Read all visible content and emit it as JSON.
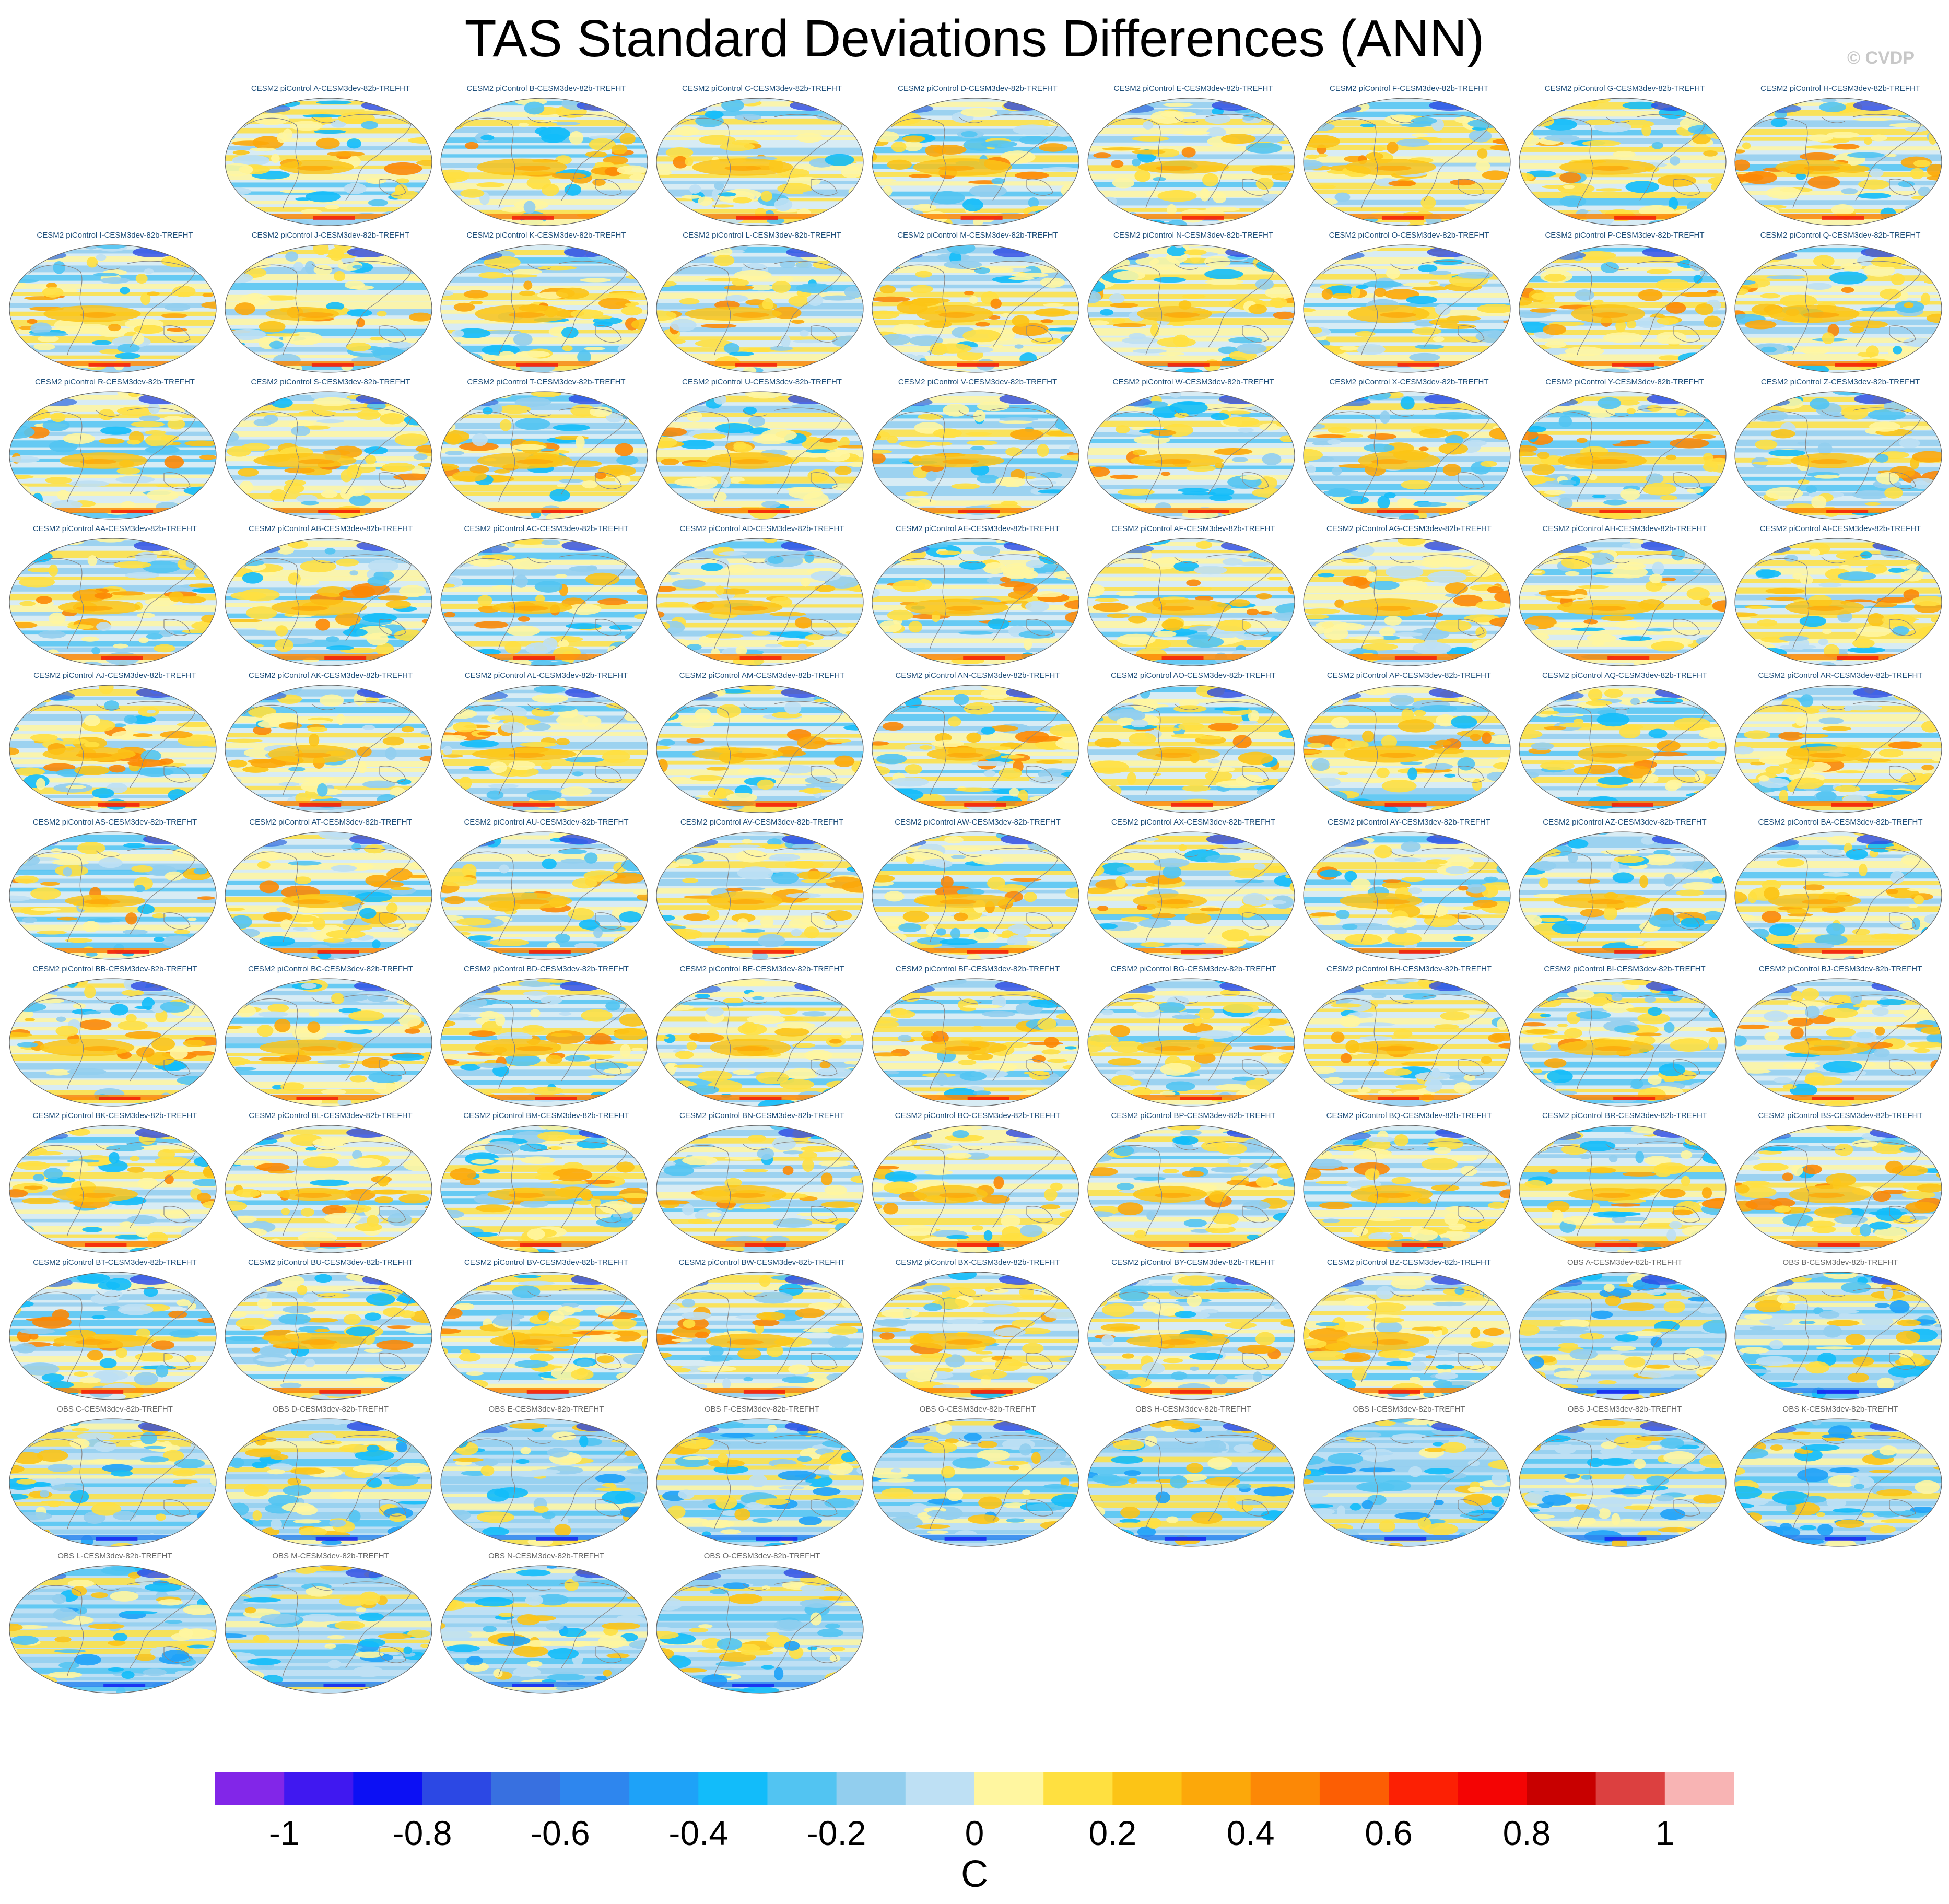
{
  "title": "TAS Standard Deviations Differences (ANN)",
  "credit": "© CVDP",
  "colorbar": {
    "unit_label": "C",
    "tick_labels": [
      "-1",
      "-0.8",
      "-0.6",
      "-0.4",
      "-0.2",
      "0",
      "0.2",
      "0.4",
      "0.6",
      "0.8",
      "1"
    ],
    "colors": [
      "#8226e8",
      "#4018f0",
      "#0c10f4",
      "#2c48e4",
      "#3870e0",
      "#2e86ee",
      "#1ea2f8",
      "#12bcfa",
      "#52c4f2",
      "#92ceee",
      "#bee0f4",
      "#fff6a0",
      "#ffe040",
      "#fcc416",
      "#fca80a",
      "#fc8806",
      "#fc5e04",
      "#fc2004",
      "#f40404",
      "#c80000",
      "#dc4040",
      "#f8b4b4"
    ]
  },
  "panel_titles": [
    "CESM2 piControl A-CESM3dev-82b-TREFHT",
    "CESM2 piControl B-CESM3dev-82b-TREFHT",
    "CESM2 piControl C-CESM3dev-82b-TREFHT",
    "CESM2 piControl D-CESM3dev-82b-TREFHT",
    "CESM2 piControl E-CESM3dev-82b-TREFHT",
    "CESM2 piControl F-CESM3dev-82b-TREFHT",
    "CESM2 piControl G-CESM3dev-82b-TREFHT",
    "CESM2 piControl H-CESM3dev-82b-TREFHT",
    "CESM2 piControl I-CESM3dev-82b-TREFHT",
    "CESM2 piControl J-CESM3dev-82b-TREFHT",
    "CESM2 piControl K-CESM3dev-82b-TREFHT",
    "CESM2 piControl L-CESM3dev-82b-TREFHT",
    "CESM2 piControl M-CESM3dev-82b-TREFHT",
    "CESM2 piControl N-CESM3dev-82b-TREFHT",
    "CESM2 piControl O-CESM3dev-82b-TREFHT",
    "CESM2 piControl P-CESM3dev-82b-TREFHT",
    "CESM2 piControl Q-CESM3dev-82b-TREFHT",
    "CESM2 piControl R-CESM3dev-82b-TREFHT",
    "CESM2 piControl S-CESM3dev-82b-TREFHT",
    "CESM2 piControl T-CESM3dev-82b-TREFHT",
    "CESM2 piControl U-CESM3dev-82b-TREFHT",
    "CESM2 piControl V-CESM3dev-82b-TREFHT",
    "CESM2 piControl W-CESM3dev-82b-TREFHT",
    "CESM2 piControl X-CESM3dev-82b-TREFHT",
    "CESM2 piControl Y-CESM3dev-82b-TREFHT",
    "CESM2 piControl Z-CESM3dev-82b-TREFHT",
    "CESM2 piControl AA-CESM3dev-82b-TREFHT",
    "CESM2 piControl AB-CESM3dev-82b-TREFHT",
    "CESM2 piControl AC-CESM3dev-82b-TREFHT",
    "CESM2 piControl AD-CESM3dev-82b-TREFHT",
    "CESM2 piControl AE-CESM3dev-82b-TREFHT",
    "CESM2 piControl AF-CESM3dev-82b-TREFHT",
    "CESM2 piControl AG-CESM3dev-82b-TREFHT",
    "CESM2 piControl AH-CESM3dev-82b-TREFHT",
    "CESM2 piControl AI-CESM3dev-82b-TREFHT",
    "CESM2 piControl AJ-CESM3dev-82b-TREFHT",
    "CESM2 piControl AK-CESM3dev-82b-TREFHT",
    "CESM2 piControl AL-CESM3dev-82b-TREFHT",
    "CESM2 piControl AM-CESM3dev-82b-TREFHT",
    "CESM2 piControl AN-CESM3dev-82b-TREFHT",
    "CESM2 piControl AO-CESM3dev-82b-TREFHT",
    "CESM2 piControl AP-CESM3dev-82b-TREFHT",
    "CESM2 piControl AQ-CESM3dev-82b-TREFHT",
    "CESM2 piControl AR-CESM3dev-82b-TREFHT",
    "CESM2 piControl AS-CESM3dev-82b-TREFHT",
    "CESM2 piControl AT-CESM3dev-82b-TREFHT",
    "CESM2 piControl AU-CESM3dev-82b-TREFHT",
    "CESM2 piControl AV-CESM3dev-82b-TREFHT",
    "CESM2 piControl AW-CESM3dev-82b-TREFHT",
    "CESM2 piControl AX-CESM3dev-82b-TREFHT",
    "CESM2 piControl AY-CESM3dev-82b-TREFHT",
    "CESM2 piControl AZ-CESM3dev-82b-TREFHT",
    "CESM2 piControl BA-CESM3dev-82b-TREFHT",
    "CESM2 piControl BB-CESM3dev-82b-TREFHT",
    "CESM2 piControl BC-CESM3dev-82b-TREFHT",
    "CESM2 piControl BD-CESM3dev-82b-TREFHT",
    "CESM2 piControl BE-CESM3dev-82b-TREFHT",
    "CESM2 piControl BF-CESM3dev-82b-TREFHT",
    "CESM2 piControl BG-CESM3dev-82b-TREFHT",
    "CESM2 piControl BH-CESM3dev-82b-TREFHT",
    "CESM2 piControl BI-CESM3dev-82b-TREFHT",
    "CESM2 piControl BJ-CESM3dev-82b-TREFHT",
    "CESM2 piControl BK-CESM3dev-82b-TREFHT",
    "CESM2 piControl BL-CESM3dev-82b-TREFHT",
    "CESM2 piControl BM-CESM3dev-82b-TREFHT",
    "CESM2 piControl BN-CESM3dev-82b-TREFHT",
    "CESM2 piControl BO-CESM3dev-82b-TREFHT",
    "CESM2 piControl BP-CESM3dev-82b-TREFHT",
    "CESM2 piControl BQ-CESM3dev-82b-TREFHT",
    "CESM2 piControl BR-CESM3dev-82b-TREFHT",
    "CESM2 piControl BS-CESM3dev-82b-TREFHT",
    "CESM2 piControl BT-CESM3dev-82b-TREFHT",
    "CESM2 piControl BU-CESM3dev-82b-TREFHT",
    "CESM2 piControl BV-CESM3dev-82b-TREFHT",
    "CESM2 piControl BW-CESM3dev-82b-TREFHT",
    "CESM2 piControl BX-CESM3dev-82b-TREFHT",
    "CESM2 piControl BY-CESM3dev-82b-TREFHT",
    "CESM2 piControl BZ-CESM3dev-82b-TREFHT",
    "OBS A-CESM3dev-82b-TREFHT",
    "OBS B-CESM3dev-82b-TREFHT",
    "OBS C-CESM3dev-82b-TREFHT",
    "OBS D-CESM3dev-82b-TREFHT",
    "OBS E-CESM3dev-82b-TREFHT",
    "OBS F-CESM3dev-82b-TREFHT",
    "OBS G-CESM3dev-82b-TREFHT",
    "OBS H-CESM3dev-82b-TREFHT",
    "OBS I-CESM3dev-82b-TREFHT",
    "OBS J-CESM3dev-82b-TREFHT",
    "OBS K-CESM3dev-82b-TREFHT",
    "OBS L-CESM3dev-82b-TREFHT",
    "OBS M-CESM3dev-82b-TREFHT",
    "OBS N-CESM3dev-82b-TREFHT",
    "OBS O-CESM3dev-82b-TREFHT"
  ],
  "chart_data": {
    "type": "heatmap",
    "title": "TAS Standard Deviations Differences (ANN)",
    "colorbar_label": "C",
    "colorbar_ticks": [
      -1,
      -0.8,
      -0.6,
      -0.4,
      -0.2,
      0,
      0.2,
      0.4,
      0.6,
      0.8,
      1
    ],
    "colorbar_range": [
      -1.1,
      1.1
    ],
    "colorbar_bin_width": 0.1,
    "panel_count": 93,
    "map_projection": "global elliptical",
    "dominant_pattern": "positive values (yellow/orange) in the tropical Pacific and Southern Ocean for CESM2 piControl panels; negative values (blue) over high-latitude continents and in OBS panels"
  }
}
